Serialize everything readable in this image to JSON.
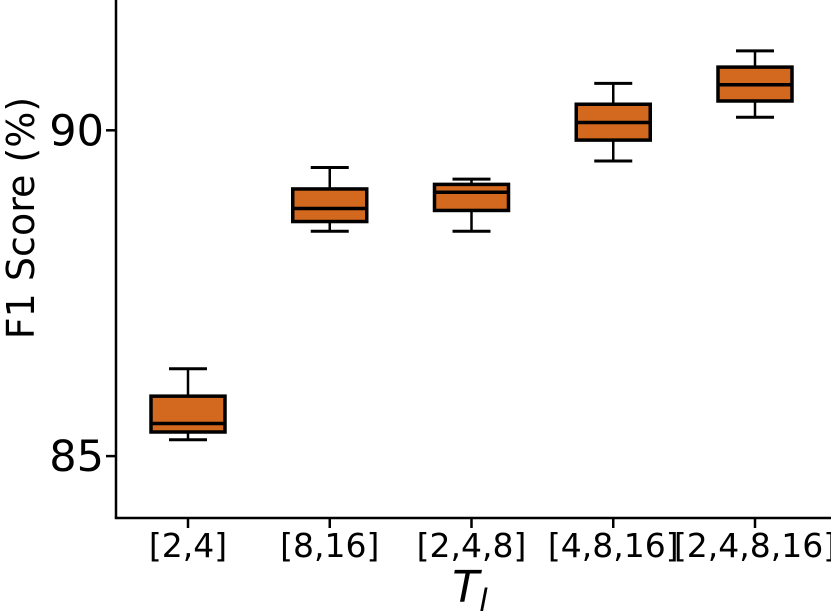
{
  "figure": {
    "background": "#ffffff"
  },
  "chart_data": {
    "type": "box",
    "title": "",
    "xlabel": {
      "text": "T",
      "subscript": "l"
    },
    "ylabel": "F1 Score (%)",
    "categories": [
      "[2,4]",
      "[8,16]",
      "[2,4,8]",
      "[4,8,16]",
      "[2,4,8,16]"
    ],
    "boxes": [
      {
        "label": "[2,4]",
        "whisker_low": 85.25,
        "q1": 85.37,
        "median": 85.5,
        "q3": 85.92,
        "whisker_high": 86.34
      },
      {
        "label": "[8,16]",
        "whisker_low": 88.45,
        "q1": 88.6,
        "median": 88.8,
        "q3": 89.1,
        "whisker_high": 89.43
      },
      {
        "label": "[2,4,8]",
        "whisker_low": 88.45,
        "q1": 88.77,
        "median": 89.05,
        "q3": 89.17,
        "whisker_high": 89.25
      },
      {
        "label": "[4,8,16]",
        "whisker_low": 89.53,
        "q1": 89.85,
        "median": 90.12,
        "q3": 90.4,
        "whisker_high": 90.72
      },
      {
        "label": "[2,4,8,16]",
        "whisker_low": 90.2,
        "q1": 90.45,
        "median": 90.7,
        "q3": 90.97,
        "whisker_high": 91.22
      }
    ],
    "yticks": [
      85,
      90
    ],
    "ylim": [
      84.05,
      92.0
    ],
    "grid": false,
    "legend": null,
    "colors": {
      "box_fill": "#d2691e",
      "box_edge": "#000000",
      "whisker": "#000000",
      "median": "#000000",
      "axis": "#000000",
      "text": "#000000"
    }
  }
}
